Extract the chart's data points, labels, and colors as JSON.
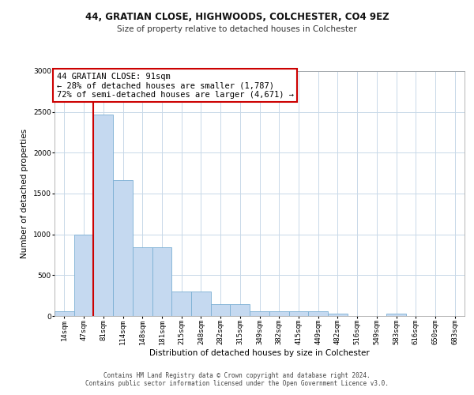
{
  "title_line1": "44, GRATIAN CLOSE, HIGHWOODS, COLCHESTER, CO4 9EZ",
  "title_line2": "Size of property relative to detached houses in Colchester",
  "xlabel": "Distribution of detached houses by size in Colchester",
  "ylabel": "Number of detached properties",
  "bar_labels": [
    "14sqm",
    "47sqm",
    "81sqm",
    "114sqm",
    "148sqm",
    "181sqm",
    "215sqm",
    "248sqm",
    "282sqm",
    "315sqm",
    "349sqm",
    "382sqm",
    "415sqm",
    "449sqm",
    "482sqm",
    "516sqm",
    "549sqm",
    "583sqm",
    "616sqm",
    "650sqm",
    "683sqm"
  ],
  "bar_values": [
    60,
    1000,
    2470,
    1660,
    840,
    840,
    300,
    300,
    145,
    145,
    55,
    55,
    55,
    55,
    30,
    0,
    0,
    30,
    0,
    0,
    0
  ],
  "bar_color": "#c5d9f0",
  "bar_edge_color": "#7bafd4",
  "vline_x_index": 2,
  "vline_color": "#cc0000",
  "annotation_text_line1": "44 GRATIAN CLOSE: 91sqm",
  "annotation_text_line2": "← 28% of detached houses are smaller (1,787)",
  "annotation_text_line3": "72% of semi-detached houses are larger (4,671) →",
  "annotation_box_color": "#ffffff",
  "annotation_box_edge_color": "#cc0000",
  "ylim": [
    0,
    3000
  ],
  "yticks": [
    0,
    500,
    1000,
    1500,
    2000,
    2500,
    3000
  ],
  "footer_line1": "Contains HM Land Registry data © Crown copyright and database right 2024.",
  "footer_line2": "Contains public sector information licensed under the Open Government Licence v3.0.",
  "background_color": "#ffffff",
  "grid_color": "#c8d8e8",
  "title_fontsize": 8.5,
  "subtitle_fontsize": 7.5,
  "xlabel_fontsize": 7.5,
  "ylabel_fontsize": 7.5,
  "tick_fontsize": 6.5,
  "annotation_fontsize": 7.5,
  "footer_fontsize": 5.5
}
